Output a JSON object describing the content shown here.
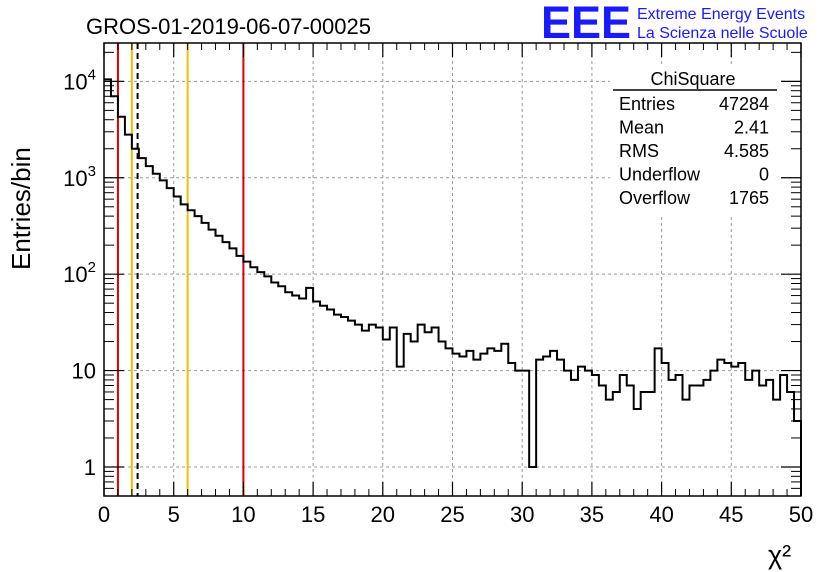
{
  "chart_data": {
    "type": "histogram",
    "title": "GROS-01-2019-06-07-00025",
    "xlabel": "χ²",
    "ylabel": "Entries/bin",
    "xlim": [
      0,
      50
    ],
    "ylim": [
      0.5,
      25000
    ],
    "y_scale": "log",
    "grid": true,
    "bin_width": 0.5,
    "x_ticks": [
      "0",
      "5",
      "10",
      "15",
      "20",
      "25",
      "30",
      "35",
      "40",
      "45",
      "50"
    ],
    "y_ticks": [
      {
        "value": 1,
        "base": "1",
        "exp": ""
      },
      {
        "value": 10,
        "base": "10",
        "exp": ""
      },
      {
        "value": 100,
        "base": "10",
        "exp": "2"
      },
      {
        "value": 1000,
        "base": "10",
        "exp": "3"
      },
      {
        "value": 10000,
        "base": "10",
        "exp": "4"
      }
    ],
    "bin_values": [
      10500,
      7000,
      4300,
      2800,
      2000,
      1600,
      1320,
      1100,
      940,
      780,
      640,
      530,
      460,
      400,
      340,
      290,
      250,
      215,
      185,
      155,
      135,
      118,
      105,
      95,
      82,
      75,
      65,
      60,
      56,
      72,
      52,
      47,
      43,
      38,
      36,
      33,
      30,
      26,
      30,
      28,
      21,
      28,
      11,
      24,
      20,
      30,
      25,
      28,
      20,
      17,
      15,
      14,
      16,
      13,
      15,
      17,
      16,
      19,
      12,
      10,
      10,
      1,
      13,
      14,
      16,
      13,
      10,
      8,
      11,
      10,
      9,
      7,
      5,
      6,
      9,
      7,
      4,
      6,
      6,
      17,
      12,
      8,
      9,
      5,
      7,
      7,
      8,
      10,
      13,
      12,
      11,
      12,
      8,
      10,
      7,
      8,
      5,
      9,
      6,
      3
    ],
    "markers": [
      {
        "x": 1,
        "color": "#dd0000",
        "style": "solid"
      },
      {
        "x": 2,
        "color": "#f0c000",
        "style": "solid"
      },
      {
        "x": 2.41,
        "color": "#000000",
        "style": "dashed"
      },
      {
        "x": 6,
        "color": "#f0c000",
        "style": "solid"
      },
      {
        "x": 10,
        "color": "#dd0000",
        "style": "solid"
      }
    ],
    "stats": {
      "name": "ChiSquare",
      "rows": [
        {
          "label": "Entries",
          "value": "47284"
        },
        {
          "label": "Mean",
          "value": "2.41"
        },
        {
          "label": "RMS",
          "value": "4.585"
        },
        {
          "label": "Underflow",
          "value": "0"
        },
        {
          "label": "Overflow",
          "value": "1765"
        }
      ]
    }
  },
  "logo": {
    "letters": "EEE",
    "line1": "Extreme Energy Events",
    "line2": "La Scienza nelle Scuole",
    "color": "#1a1aff"
  }
}
